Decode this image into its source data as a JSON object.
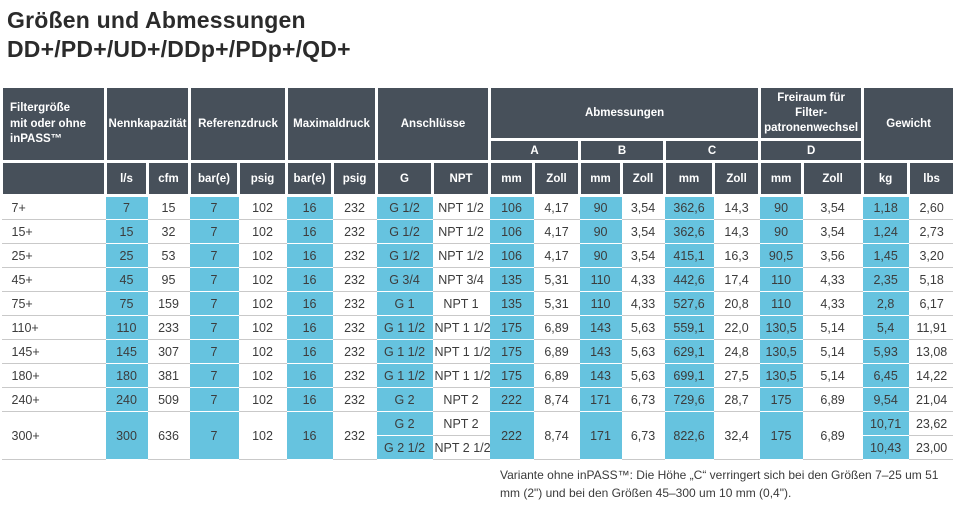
{
  "title": {
    "line1": "Größen und Abmessungen",
    "line2": "DD+/PD+/UD+/DDp+/PDp+/QD+"
  },
  "colors": {
    "header_bg": "#47505A",
    "highlight_blue": "#66C3DF",
    "row_line": "#C9C9C9",
    "text_dark": "#3C3C3C"
  },
  "table": {
    "header": {
      "filter_size_line1": "Filtergröße",
      "filter_size_line2": "mit oder ohne",
      "filter_size_line3": "inPASS™",
      "nennkapazitaet": "Nennkapazität",
      "referenzdruck": "Referenzdruck",
      "maximaldruck": "Maximaldruck",
      "anschluesse": "Anschlüsse",
      "abmessungen": "Abmessungen",
      "freiraum_line1": "Freiraum für Filter-",
      "freiraum_line2": "patronenwechsel",
      "gewicht": "Gewicht",
      "dim_a": "A",
      "dim_b": "B",
      "dim_c": "C",
      "dim_d": "D",
      "units": {
        "ls": "l/s",
        "cfm": "cfm",
        "bar": "bar(e)",
        "psig": "psig",
        "g": "G",
        "npt": "NPT",
        "mm": "mm",
        "zoll": "Zoll",
        "kg": "kg",
        "lbs": "lbs"
      }
    },
    "highlight_columns": [
      1,
      3,
      5,
      7,
      9,
      11,
      13,
      15,
      17
    ],
    "rows": [
      [
        "7+",
        "7",
        "15",
        "7",
        "102",
        "16",
        "232",
        "G 1/2",
        "NPT 1/2",
        "106",
        "4,17",
        "90",
        "3,54",
        "362,6",
        "14,3",
        "90",
        "3,54",
        "1,18",
        "2,60"
      ],
      [
        "15+",
        "15",
        "32",
        "7",
        "102",
        "16",
        "232",
        "G 1/2",
        "NPT 1/2",
        "106",
        "4,17",
        "90",
        "3,54",
        "362,6",
        "14,3",
        "90",
        "3,54",
        "1,24",
        "2,73"
      ],
      [
        "25+",
        "25",
        "53",
        "7",
        "102",
        "16",
        "232",
        "G 1/2",
        "NPT 1/2",
        "106",
        "4,17",
        "90",
        "3,54",
        "415,1",
        "16,3",
        "90,5",
        "3,56",
        "1,45",
        "3,20"
      ],
      [
        "45+",
        "45",
        "95",
        "7",
        "102",
        "16",
        "232",
        "G 3/4",
        "NPT 3/4",
        "135",
        "5,31",
        "110",
        "4,33",
        "442,6",
        "17,4",
        "110",
        "4,33",
        "2,35",
        "5,18"
      ],
      [
        "75+",
        "75",
        "159",
        "7",
        "102",
        "16",
        "232",
        "G 1",
        "NPT 1",
        "135",
        "5,31",
        "110",
        "4,33",
        "527,6",
        "20,8",
        "110",
        "4,33",
        "2,8",
        "6,17"
      ],
      [
        "110+",
        "110",
        "233",
        "7",
        "102",
        "16",
        "232",
        "G 1 1/2",
        "NPT 1 1/2",
        "175",
        "6,89",
        "143",
        "5,63",
        "559,1",
        "22,0",
        "130,5",
        "5,14",
        "5,4",
        "11,91"
      ],
      [
        "145+",
        "145",
        "307",
        "7",
        "102",
        "16",
        "232",
        "G 1 1/2",
        "NPT 1 1/2",
        "175",
        "6,89",
        "143",
        "5,63",
        "629,1",
        "24,8",
        "130,5",
        "5,14",
        "5,93",
        "13,08"
      ],
      [
        "180+",
        "180",
        "381",
        "7",
        "102",
        "16",
        "232",
        "G 1 1/2",
        "NPT 1 1/2",
        "175",
        "6,89",
        "143",
        "5,63",
        "699,1",
        "27,5",
        "130,5",
        "5,14",
        "6,45",
        "14,22"
      ],
      [
        "240+",
        "240",
        "509",
        "7",
        "102",
        "16",
        "232",
        "G 2",
        "NPT 2",
        "222",
        "8,74",
        "171",
        "6,73",
        "729,6",
        "28,7",
        "175",
        "6,89",
        "9,54",
        "21,04"
      ]
    ],
    "row_300plus": {
      "size": "300+",
      "shared": [
        "300",
        "636",
        "7",
        "102",
        "16",
        "232"
      ],
      "dims": [
        "222",
        "8,74",
        "171",
        "6,73",
        "822,6",
        "32,4",
        "175",
        "6,89"
      ],
      "variants": [
        [
          "G 2",
          "NPT 2",
          "10,71",
          "23,62"
        ],
        [
          "G 2 1/2",
          "NPT 2 1/2",
          "10,43",
          "23,00"
        ]
      ]
    }
  },
  "footnote": "Variante ohne inPASS™: Die Höhe „C“ verringert sich bei den Größen 7–25 um 51 mm (2\") und bei den Größen 45–300 um 10 mm (0,4\")."
}
